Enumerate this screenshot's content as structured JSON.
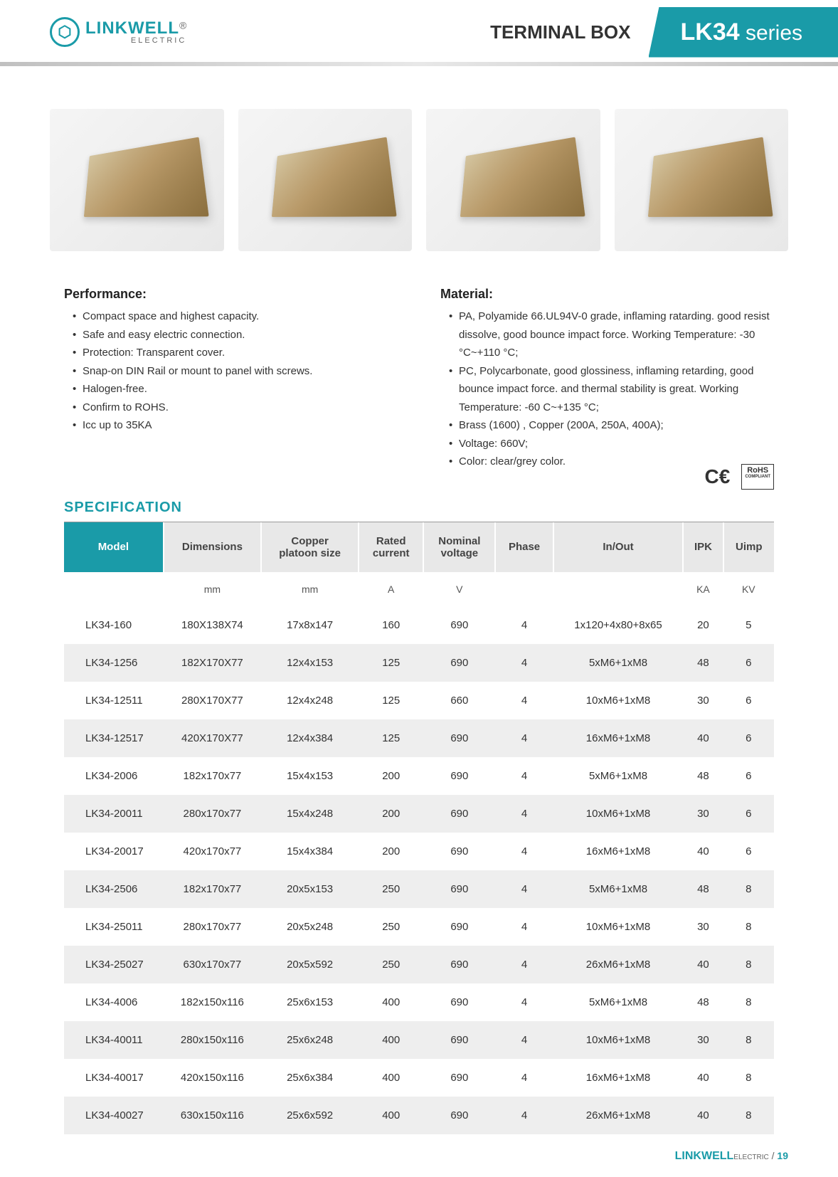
{
  "brand": {
    "name": "LINKWELL",
    "sub": "ELECTRIC",
    "reg": "®"
  },
  "header": {
    "category": "TERMINAL BOX",
    "series_bold": "LK34",
    "series_light": " series"
  },
  "performance": {
    "title": "Performance:",
    "items": [
      "Compact space and highest capacity.",
      "Safe and easy electric connection.",
      "Protection: Transparent cover.",
      "Snap-on DIN Rail or mount to panel with screws.",
      "Halogen-free.",
      "Confirm to ROHS.",
      "Icc up to 35KA"
    ]
  },
  "material": {
    "title": "Material:",
    "items": [
      "PA, Polyamide 66.UL94V-0 grade, inflaming ratarding. good resist dissolve, good bounce impact force. Working Temperature: -30 °C~+110 °C;",
      "PC, Polycarbonate, good glossiness, inflaming retarding, good bounce impact force. and thermal stability is great. Working Temperature: -60 C~+135 °C;",
      "Brass (1600) , Copper (200A, 250A, 400A);",
      "Voltage: 660V;",
      "Color: clear/grey color."
    ]
  },
  "certs": {
    "ce": "CE",
    "rohs_top": "RoHS",
    "rohs_bot": "COMPLIANT"
  },
  "spec": {
    "heading": "SPECIFICATION",
    "columns": [
      "Model",
      "Dimensions",
      "Copper platoon size",
      "Rated current",
      "Nominal voltage",
      "Phase",
      "In/Out",
      "IPK",
      "Uimp"
    ],
    "units": [
      "",
      "mm",
      "mm",
      "A",
      "V",
      "",
      "",
      "KA",
      "KV"
    ],
    "rows": [
      [
        "LK34-160",
        "180X138X74",
        "17x8x147",
        "160",
        "690",
        "4",
        "1x120+4x80+8x65",
        "20",
        "5"
      ],
      [
        "LK34-1256",
        "182X170X77",
        "12x4x153",
        "125",
        "690",
        "4",
        "5xM6+1xM8",
        "48",
        "6"
      ],
      [
        "LK34-12511",
        "280X170X77",
        "12x4x248",
        "125",
        "660",
        "4",
        "10xM6+1xM8",
        "30",
        "6"
      ],
      [
        "LK34-12517",
        "420X170X77",
        "12x4x384",
        "125",
        "690",
        "4",
        "16xM6+1xM8",
        "40",
        "6"
      ],
      [
        "LK34-2006",
        "182x170x77",
        "15x4x153",
        "200",
        "690",
        "4",
        "5xM6+1xM8",
        "48",
        "6"
      ],
      [
        "LK34-20011",
        "280x170x77",
        "15x4x248",
        "200",
        "690",
        "4",
        "10xM6+1xM8",
        "30",
        "6"
      ],
      [
        "LK34-20017",
        "420x170x77",
        "15x4x384",
        "200",
        "690",
        "4",
        "16xM6+1xM8",
        "40",
        "6"
      ],
      [
        "LK34-2506",
        "182x170x77",
        "20x5x153",
        "250",
        "690",
        "4",
        "5xM6+1xM8",
        "48",
        "8"
      ],
      [
        "LK34-25011",
        "280x170x77",
        "20x5x248",
        "250",
        "690",
        "4",
        "10xM6+1xM8",
        "30",
        "8"
      ],
      [
        "LK34-25027",
        "630x170x77",
        "20x5x592",
        "250",
        "690",
        "4",
        "26xM6+1xM8",
        "40",
        "8"
      ],
      [
        "LK34-4006",
        "182x150x116",
        "25x6x153",
        "400",
        "690",
        "4",
        "5xM6+1xM8",
        "48",
        "8"
      ],
      [
        "LK34-40011",
        "280x150x116",
        "25x6x248",
        "400",
        "690",
        "4",
        "10xM6+1xM8",
        "30",
        "8"
      ],
      [
        "LK34-40017",
        "420x150x116",
        "25x6x384",
        "400",
        "690",
        "4",
        "16xM6+1xM8",
        "40",
        "8"
      ],
      [
        "LK34-40027",
        "630x150x116",
        "25x6x592",
        "400",
        "690",
        "4",
        "26xM6+1xM8",
        "40",
        "8"
      ]
    ]
  },
  "footer": {
    "brand": "LINKWELL",
    "sub": "ELECTRIC",
    "sep": " / ",
    "page": "19"
  },
  "colors": {
    "teal": "#1a9ba8",
    "teal_light": "#3aadb8",
    "row_alt": "#eeeeee"
  }
}
